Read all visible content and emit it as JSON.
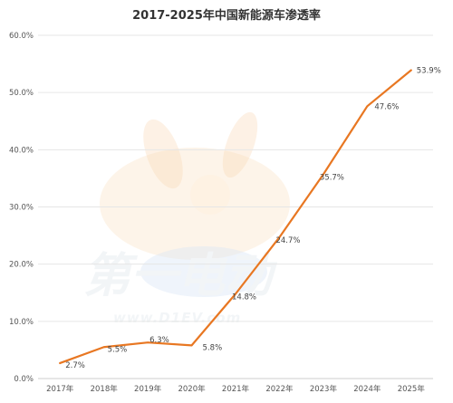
{
  "chart_data": {
    "type": "line",
    "title": "2017-2025年中国新能源车渗透率",
    "categories": [
      "2017年",
      "2018年",
      "2019年",
      "2020年",
      "2021年",
      "2022年",
      "2023年",
      "2024年",
      "2025年"
    ],
    "series": [
      {
        "values": [
          2.7,
          5.5,
          6.3,
          5.8,
          14.8,
          24.7,
          35.7,
          47.6,
          53.9
        ],
        "labels": [
          "2.7%",
          "5.5%",
          "6.3%",
          "5.8%",
          "14.8%",
          "24.7%",
          "35.7%",
          "47.6%",
          "53.9%"
        ],
        "color": "#e87722"
      }
    ],
    "y_ticks": [
      "0.0%",
      "10.0%",
      "20.0%",
      "30.0%",
      "40.0%",
      "50.0%",
      "60.0%"
    ],
    "ylim": [
      0,
      60
    ],
    "grid": true,
    "legend": "none"
  },
  "watermark": {
    "logo_text": "第一电动",
    "url": "www.D1EV.com",
    "color": "#f6c58c"
  }
}
